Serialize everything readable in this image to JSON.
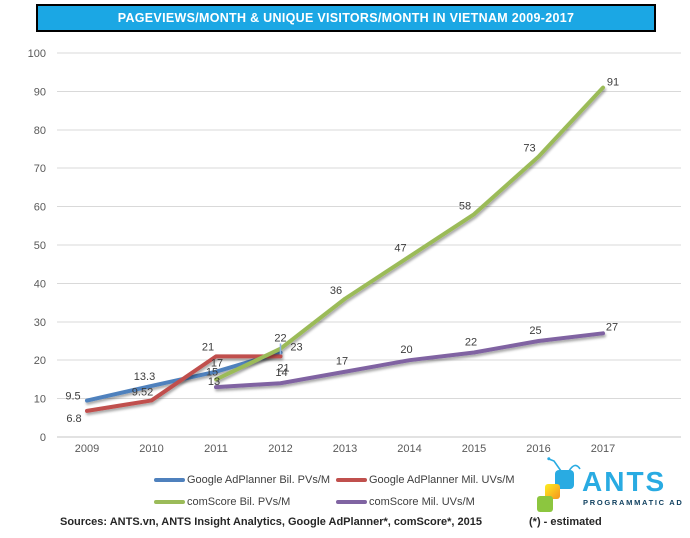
{
  "title_bar": {
    "text": "PAGEVIEWS/MONTH & UNIQUE VISITORS/MONTH IN VIETNAM 2009-2017",
    "bg_color": "#1BA7E4",
    "text_color": "#FFFFFF"
  },
  "chart_data": {
    "type": "line",
    "x": [
      2009,
      2010,
      2011,
      2012,
      2013,
      2014,
      2015,
      2016,
      2017
    ],
    "ylim": [
      0,
      100
    ],
    "ytick_step": 10,
    "grid": true,
    "legend_position": "bottom",
    "series": [
      {
        "name": "Google AdPlanner Bil. PVs/M",
        "color": "#4F81BD",
        "x": [
          2009,
          2010,
          2011,
          2012
        ],
        "values": [
          9.5,
          13.3,
          17,
          22
        ]
      },
      {
        "name": "Google AdPlanner Mil. UVs/M",
        "color": "#C0504D",
        "x": [
          2009,
          2010,
          2011,
          2012
        ],
        "values": [
          6.8,
          9.52,
          21,
          21
        ]
      },
      {
        "name": "comScore Bil. PVs/M",
        "color": "#9BBB59",
        "x": [
          2011,
          2012,
          2013,
          2014,
          2015,
          2016,
          2017
        ],
        "values": [
          15,
          23,
          36,
          47,
          58,
          73,
          91
        ]
      },
      {
        "name": "comScore Mil. UVs/M",
        "color": "#8064A2",
        "x": [
          2011,
          2012,
          2013,
          2014,
          2015,
          2016,
          2017
        ],
        "values": [
          13,
          14,
          17,
          20,
          22,
          25,
          27
        ]
      }
    ]
  },
  "footer": {
    "sources": "Sources: ANTS.vn, ANTS Insight Analytics, Google AdPlanner*, comScore*, 2015",
    "estimated": "(*) - estimated"
  },
  "logo": {
    "brand": "ANTS",
    "tagline": "PROGRAMMATIC AD",
    "brand_color": "#29ABE2",
    "square_colors": {
      "blue": "#29ABE2",
      "yellow_top": "#FCEE21",
      "yellow_bottom": "#F7931E",
      "green": "#8CC63F"
    }
  }
}
